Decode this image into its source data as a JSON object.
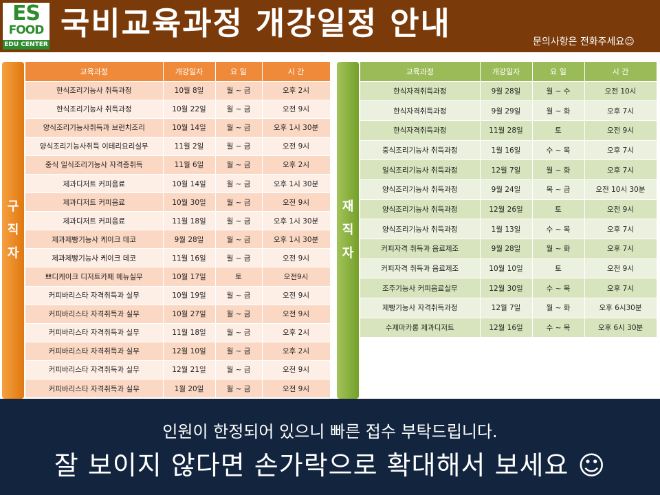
{
  "header": {
    "logo_top": "ES",
    "logo_mid": "FOOD",
    "logo_bottom": "EDU CENTER",
    "title": "국비교육과정 개강일정 안내",
    "note": "문의사항은 전화주세요☺"
  },
  "left": {
    "side_label": [
      "구",
      "직",
      "자"
    ],
    "columns": [
      "교육과정",
      "개강일자",
      "요 일",
      "시 간"
    ],
    "rows": [
      [
        "한식조리기능사 취득과정",
        "10월 8일",
        "월 ~ 금",
        "오후 2시"
      ],
      [
        "한식조리기능사 취득과정",
        "10월 22일",
        "월 ~ 금",
        "오전 9시"
      ],
      [
        "양식조리기능사취득과 브런치조리",
        "10월 14일",
        "월 ~ 금",
        "오후 1시 30분"
      ],
      [
        "양식조리기능사취득 이테리요리실무",
        "11월 2일",
        "월 ~ 금",
        "오전 9시"
      ],
      [
        "중식 일식조리기능사 자격증취득",
        "11월 6일",
        "월 ~ 금",
        "오후 2시"
      ],
      [
        "제과디저트 커피음료",
        "10월 14일",
        "월 ~ 금",
        "오후 1시 30분"
      ],
      [
        "제과디저트 커피음료",
        "10월 30일",
        "월 ~ 금",
        "오전 9시"
      ],
      [
        "제과디저트 커피음료",
        "11월 18일",
        "월 ~ 금",
        "오후 1시 30분"
      ],
      [
        "제과제빵기능사 케이크 데코",
        "9월 28일",
        "월 ~ 금",
        "오후 1시 30분"
      ],
      [
        "제과제빵기능사 케이크 데코",
        "11월 16일",
        "월 ~ 금",
        "오전 9시"
      ],
      [
        "쁘디케이크 디저트카페 메뉴실무",
        "10월 17일",
        "토",
        "오전9시"
      ],
      [
        "커피바리스타 자격취득과 실무",
        "10월 19일",
        "월 ~ 금",
        "오전 9시"
      ],
      [
        "커피바리스타 자격취득과 실무",
        "10월 27일",
        "월 ~ 금",
        "오전 9시"
      ],
      [
        "커피바리스타 자격취득과 실무",
        "11월 18일",
        "월 ~ 금",
        "오후 2시"
      ],
      [
        "커피바리스타 자격취득과 실무",
        "12월 10일",
        "월 ~ 금",
        "오후 2시"
      ],
      [
        "커피바리스타 자격취득과 실무",
        "12월 21일",
        "월 ~ 금",
        "오전 9시"
      ],
      [
        "커피바리스타 자격취득과 실무",
        "1월 20일",
        "월 ~ 금",
        "오전 9시"
      ]
    ]
  },
  "right": {
    "side_label": [
      "재",
      "직",
      "자"
    ],
    "columns": [
      "교육과정",
      "개강일자",
      "요 일",
      "시 간"
    ],
    "rows": [
      [
        "한식자격취득과정",
        "9월 28일",
        "월 ~ 수",
        "오전 10시"
      ],
      [
        "한식자격취득과정",
        "9월 29일",
        "월 ~ 화",
        "오후 7시"
      ],
      [
        "한식자격취득과정",
        "11월 28일",
        "토",
        "오전 9시"
      ],
      [
        "중식조리기능사 취득과정",
        "1월 16일",
        "수 ~ 목",
        "오후 7시"
      ],
      [
        "일식조리기능사 취득과정",
        "12월 7일",
        "월 ~ 화",
        "오후 7시"
      ],
      [
        "양식조리기능사 취득과정",
        "9월 24일",
        "목 ~ 금",
        "오전 10시 30분"
      ],
      [
        "양식조리기능사 취득과정",
        "12월 26일",
        "토",
        "오전 9시"
      ],
      [
        "양식조리기능사 취득과정",
        "1월 13일",
        "수 ~ 목",
        "오후 7시"
      ],
      [
        "커피자격 취득과 음료제조",
        "9월 28일",
        "월 ~ 화",
        "오후 7시"
      ],
      [
        "커피자격 취득과 음료제조",
        "10월 10일",
        "토",
        "오전 9시"
      ],
      [
        "조주기능사 커피음료실무",
        "12월 30일",
        "수 ~ 목",
        "오후 7시"
      ],
      [
        "제빵기능사 자격취득과정",
        "12월 7일",
        "월 ~ 화",
        "오후 6시30분"
      ],
      [
        "수제마카롱 제과디저트",
        "12월 16일",
        "수 ~ 목",
        "오후 6시 30분"
      ]
    ]
  },
  "footer": {
    "line1": "인원이 한정되어 있으니 빠른 접수 부탁드립니다.",
    "line2": "잘 보이지 않다면 손가락으로 확대해서 보세요 ☺"
  }
}
